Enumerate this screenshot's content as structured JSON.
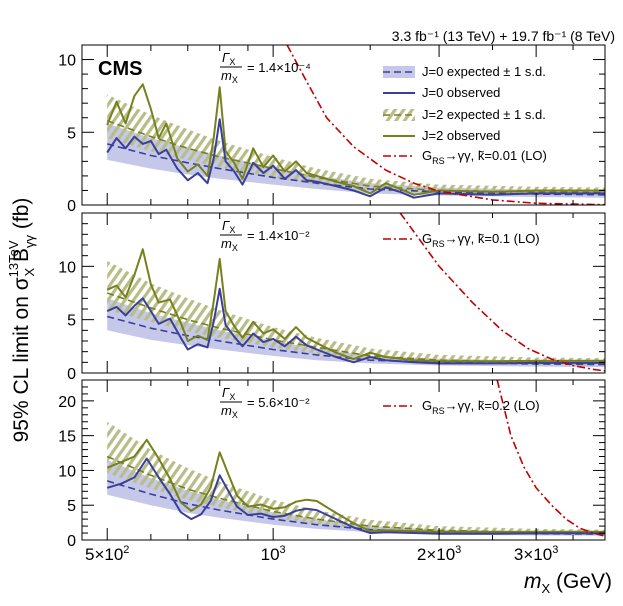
{
  "header": {
    "lumi_text": "3.3 fb⁻¹ (13 TeV) + 19.7 fb⁻¹ (8 TeV)",
    "cms_label": "CMS"
  },
  "colors": {
    "j0_band": "#c5c8e8",
    "j0_line": "#3b3f9a",
    "j2_band": "#b8bd87",
    "j2_line": "#76811e",
    "graviton": "#c00000"
  },
  "axes": {
    "xlabel_var": "m",
    "xlabel_sub": "X",
    "xlabel_unit": " (GeV)",
    "ylabel_pre": "95% CL limit on σ",
    "ylabel_sup": "13TeV",
    "ylabel_sub": "X",
    "ylabel_post": " B",
    "ylabel_subgg": "γγ",
    "ylabel_unit": " (fb)",
    "xticks": [
      {
        "value": 500,
        "label": "5×10²"
      },
      {
        "value": 1000,
        "label": "10³"
      },
      {
        "value": 2000,
        "label": "2×10³"
      },
      {
        "value": 3000,
        "label": "3×10³"
      }
    ]
  },
  "legend": {
    "j0_exp": "J=0 expected ± 1 s.d.",
    "j0_obs": "J=0 observed",
    "j2_exp": "J=2 expected ± 1 s.d.",
    "j2_obs": "J=2 observed",
    "grav_1": "G_RS→γγ, k̃=0.01 (LO)",
    "grav_2": "G_RS→γγ, k̃=0.1 (LO)",
    "grav_3": "G_RS→γγ, k̃=0.2 (LO)"
  },
  "chart_data": [
    {
      "type": "line",
      "panel": "top",
      "width_label": "Γ_X/m_X = 1.4×10⁻⁴",
      "ylim": [
        0,
        11
      ],
      "yticks": [
        0,
        5,
        10
      ],
      "xlim": [
        450,
        4000
      ],
      "series": [
        {
          "name": "J=0 expected",
          "x": [
            500,
            600,
            700,
            800,
            1000,
            1200,
            1500,
            2000,
            3000,
            4000
          ],
          "values": [
            4.2,
            3.4,
            2.9,
            2.5,
            1.9,
            1.5,
            1.1,
            0.9,
            0.75,
            0.7
          ],
          "lower": [
            3.1,
            2.5,
            2.1,
            1.8,
            1.4,
            1.1,
            0.8,
            0.65,
            0.55,
            0.5
          ],
          "upper": [
            5.6,
            4.6,
            3.9,
            3.4,
            2.6,
            2.0,
            1.5,
            1.2,
            1.05,
            1.0
          ]
        },
        {
          "name": "J=0 observed",
          "x": [
            500,
            520,
            540,
            560,
            580,
            600,
            620,
            640,
            670,
            700,
            730,
            760,
            780,
            800,
            820,
            850,
            880,
            920,
            960,
            1000,
            1050,
            1100,
            1150,
            1200,
            1300,
            1400,
            1500,
            1600,
            1700,
            1800,
            2000,
            2500,
            3000,
            4000
          ],
          "values": [
            3.6,
            4.6,
            3.9,
            4.7,
            4.2,
            4.4,
            3.5,
            3.8,
            2.5,
            1.7,
            2.2,
            1.5,
            3.2,
            5.9,
            3.0,
            2.3,
            1.4,
            2.9,
            2.2,
            2.7,
            1.8,
            2.4,
            1.7,
            1.6,
            1.3,
            1.0,
            0.6,
            1.2,
            0.9,
            0.5,
            0.8,
            0.7,
            0.8,
            0.8
          ]
        },
        {
          "name": "J=2 expected",
          "x": [
            500,
            600,
            700,
            800,
            1000,
            1200,
            1500,
            2000,
            3000,
            4000
          ],
          "values": [
            5.8,
            4.7,
            3.9,
            3.3,
            2.5,
            1.9,
            1.3,
            1.0,
            0.9,
            0.85
          ],
          "lower": [
            4.6,
            3.7,
            3.1,
            2.6,
            1.9,
            1.4,
            1.0,
            0.8,
            0.7,
            0.65
          ],
          "upper": [
            7.6,
            6.2,
            5.2,
            4.4,
            3.3,
            2.5,
            1.8,
            1.4,
            1.25,
            1.2
          ]
        },
        {
          "name": "J=2 observed",
          "x": [
            500,
            520,
            540,
            560,
            580,
            600,
            620,
            640,
            670,
            700,
            730,
            760,
            780,
            800,
            820,
            850,
            880,
            920,
            960,
            1000,
            1050,
            1100,
            1150,
            1200,
            1300,
            1400,
            1500,
            1600,
            1700,
            1800,
            2000,
            2500,
            3000,
            4000
          ],
          "values": [
            5.5,
            7.1,
            5.6,
            7.5,
            8.3,
            6.6,
            4.6,
            5.6,
            3.2,
            2.3,
            2.8,
            2.0,
            4.6,
            8.1,
            3.7,
            2.9,
            1.8,
            3.9,
            2.6,
            3.4,
            2.3,
            3.0,
            2.2,
            2.0,
            1.6,
            1.3,
            0.8,
            1.5,
            1.1,
            0.7,
            1.0,
            0.9,
            1.0,
            1.0
          ]
        },
        {
          "name": "G_RS→γγ k̃=0.01 (LO)",
          "x": [
            1060,
            1150,
            1250,
            1400,
            1600,
            1800,
            2000,
            2500,
            3000,
            4000
          ],
          "values": [
            11,
            8.5,
            6.0,
            4.0,
            2.4,
            1.5,
            0.95,
            0.35,
            0.12,
            0.02
          ]
        }
      ]
    },
    {
      "type": "line",
      "panel": "middle",
      "width_label": "Γ_X/m_X = 1.4×10⁻²",
      "ylim": [
        0,
        15
      ],
      "yticks": [
        0,
        5,
        10
      ],
      "xlim": [
        450,
        4000
      ],
      "series": [
        {
          "name": "J=0 expected",
          "x": [
            500,
            600,
            700,
            800,
            1000,
            1200,
            1500,
            2000,
            3000,
            4000
          ],
          "values": [
            5.3,
            4.2,
            3.5,
            3.0,
            2.2,
            1.7,
            1.2,
            1.0,
            0.85,
            0.8
          ],
          "lower": [
            4.0,
            3.1,
            2.6,
            2.2,
            1.6,
            1.2,
            0.9,
            0.7,
            0.6,
            0.55
          ],
          "upper": [
            7.0,
            5.6,
            4.7,
            4.0,
            3.0,
            2.3,
            1.6,
            1.35,
            1.15,
            1.1
          ]
        },
        {
          "name": "J=0 observed",
          "x": [
            500,
            520,
            540,
            560,
            580,
            600,
            620,
            650,
            680,
            700,
            730,
            760,
            780,
            800,
            820,
            850,
            880,
            920,
            960,
            1000,
            1050,
            1100,
            1150,
            1200,
            1300,
            1400,
            1500,
            1600,
            1800,
            2000,
            2500,
            3000,
            4000
          ],
          "values": [
            5.8,
            6.2,
            5.4,
            6.3,
            7.0,
            5.8,
            4.6,
            5.1,
            3.3,
            2.2,
            2.7,
            2.4,
            4.8,
            7.9,
            4.5,
            3.4,
            2.5,
            3.7,
            2.9,
            3.2,
            2.5,
            3.4,
            2.6,
            2.2,
            1.5,
            1.0,
            1.5,
            1.2,
            1.0,
            0.9,
            0.9,
            0.95,
            0.95
          ]
        },
        {
          "name": "J=2 expected",
          "x": [
            500,
            600,
            700,
            800,
            1000,
            1200,
            1500,
            2000,
            3000,
            4000
          ],
          "values": [
            7.5,
            6.1,
            5.0,
            4.2,
            3.1,
            2.4,
            1.6,
            1.2,
            1.0,
            0.95
          ],
          "lower": [
            5.9,
            4.8,
            3.9,
            3.3,
            2.4,
            1.8,
            1.2,
            0.9,
            0.75,
            0.7
          ],
          "upper": [
            10.5,
            8.4,
            7.0,
            5.9,
            4.3,
            3.3,
            2.3,
            1.7,
            1.45,
            1.4
          ]
        },
        {
          "name": "J=2 observed",
          "x": [
            500,
            520,
            540,
            560,
            580,
            600,
            620,
            650,
            680,
            700,
            730,
            760,
            780,
            800,
            820,
            850,
            880,
            920,
            960,
            1000,
            1050,
            1100,
            1150,
            1200,
            1300,
            1400,
            1500,
            1600,
            1800,
            2000,
            2500,
            3000,
            4000
          ],
          "values": [
            7.8,
            8.2,
            7.1,
            9.2,
            11.6,
            8.3,
            6.6,
            6.9,
            4.7,
            3.0,
            3.5,
            3.1,
            6.7,
            10.7,
            5.8,
            4.4,
            3.3,
            4.8,
            3.7,
            4.1,
            3.2,
            4.3,
            3.3,
            2.8,
            1.9,
            1.3,
            1.9,
            1.5,
            1.2,
            1.1,
            1.1,
            1.15,
            1.15
          ]
        },
        {
          "name": "G_RS→γγ k̃=0.1 (LO)",
          "x": [
            1700,
            2000,
            2300,
            2600,
            2900,
            3200,
            3500,
            3800,
            4000
          ],
          "values": [
            15,
            10,
            6.6,
            4.0,
            2.3,
            1.3,
            0.7,
            0.35,
            0.2
          ]
        }
      ]
    },
    {
      "type": "line",
      "panel": "bottom",
      "width_label": "Γ_X/m_X = 5.6×10⁻²",
      "ylim": [
        0,
        23
      ],
      "yticks": [
        0,
        5,
        10,
        15,
        20
      ],
      "xlim": [
        450,
        4000
      ],
      "series": [
        {
          "name": "J=0 expected",
          "x": [
            500,
            600,
            700,
            800,
            1000,
            1200,
            1500,
            2000,
            3000,
            4000
          ],
          "values": [
            8.5,
            6.6,
            5.2,
            4.3,
            3.0,
            2.2,
            1.5,
            1.1,
            0.9,
            0.85
          ],
          "lower": [
            6.5,
            5.0,
            3.9,
            3.2,
            2.2,
            1.6,
            1.1,
            0.8,
            0.65,
            0.6
          ],
          "upper": [
            11.5,
            8.9,
            7.1,
            5.8,
            4.0,
            3.0,
            2.0,
            1.5,
            1.25,
            1.2
          ]
        },
        {
          "name": "J=0 observed",
          "x": [
            500,
            530,
            560,
            590,
            620,
            650,
            680,
            710,
            740,
            770,
            800,
            830,
            860,
            900,
            950,
            1000,
            1050,
            1100,
            1150,
            1200,
            1300,
            1400,
            1500,
            1600,
            1800,
            2000,
            2500,
            3000,
            4000
          ],
          "values": [
            7.5,
            8.1,
            9.0,
            11.7,
            9.0,
            6.6,
            4.0,
            3.0,
            3.7,
            5.6,
            9.3,
            7.0,
            4.8,
            3.6,
            3.8,
            3.3,
            3.5,
            4.2,
            4.5,
            4.3,
            3.0,
            1.8,
            1.0,
            1.1,
            1.0,
            0.9,
            0.9,
            0.95,
            0.95
          ]
        },
        {
          "name": "J=2 expected",
          "x": [
            500,
            600,
            700,
            800,
            1000,
            1200,
            1500,
            2000,
            3000,
            4000
          ],
          "values": [
            12.0,
            9.3,
            7.3,
            6.0,
            4.1,
            3.0,
            2.0,
            1.4,
            1.1,
            1.05
          ],
          "lower": [
            9.6,
            7.4,
            5.8,
            4.7,
            3.2,
            2.3,
            1.5,
            1.05,
            0.85,
            0.8
          ],
          "upper": [
            17.0,
            13.0,
            10.3,
            8.4,
            5.8,
            4.3,
            2.9,
            2.0,
            1.6,
            1.5
          ]
        },
        {
          "name": "J=2 observed",
          "x": [
            500,
            530,
            560,
            590,
            620,
            650,
            680,
            710,
            740,
            770,
            800,
            830,
            860,
            900,
            950,
            1000,
            1050,
            1100,
            1150,
            1200,
            1300,
            1400,
            1500,
            1600,
            1800,
            2000,
            2500,
            3000,
            4000
          ],
          "values": [
            10.4,
            11.2,
            12.0,
            14.4,
            11.7,
            8.8,
            5.4,
            4.2,
            5.1,
            7.5,
            12.6,
            9.4,
            6.4,
            4.8,
            5.1,
            4.5,
            4.7,
            5.5,
            5.8,
            5.6,
            3.9,
            2.4,
            1.3,
            1.4,
            1.3,
            1.2,
            1.15,
            1.2,
            1.2
          ]
        },
        {
          "name": "G_RS→γγ k̃=0.2 (LO)",
          "x": [
            2550,
            2700,
            2850,
            3000,
            3200,
            3400,
            3600,
            3800,
            4000
          ],
          "values": [
            23,
            15,
            10.5,
            7.5,
            5.0,
            3.0,
            1.7,
            1.0,
            0.55
          ]
        }
      ]
    }
  ]
}
